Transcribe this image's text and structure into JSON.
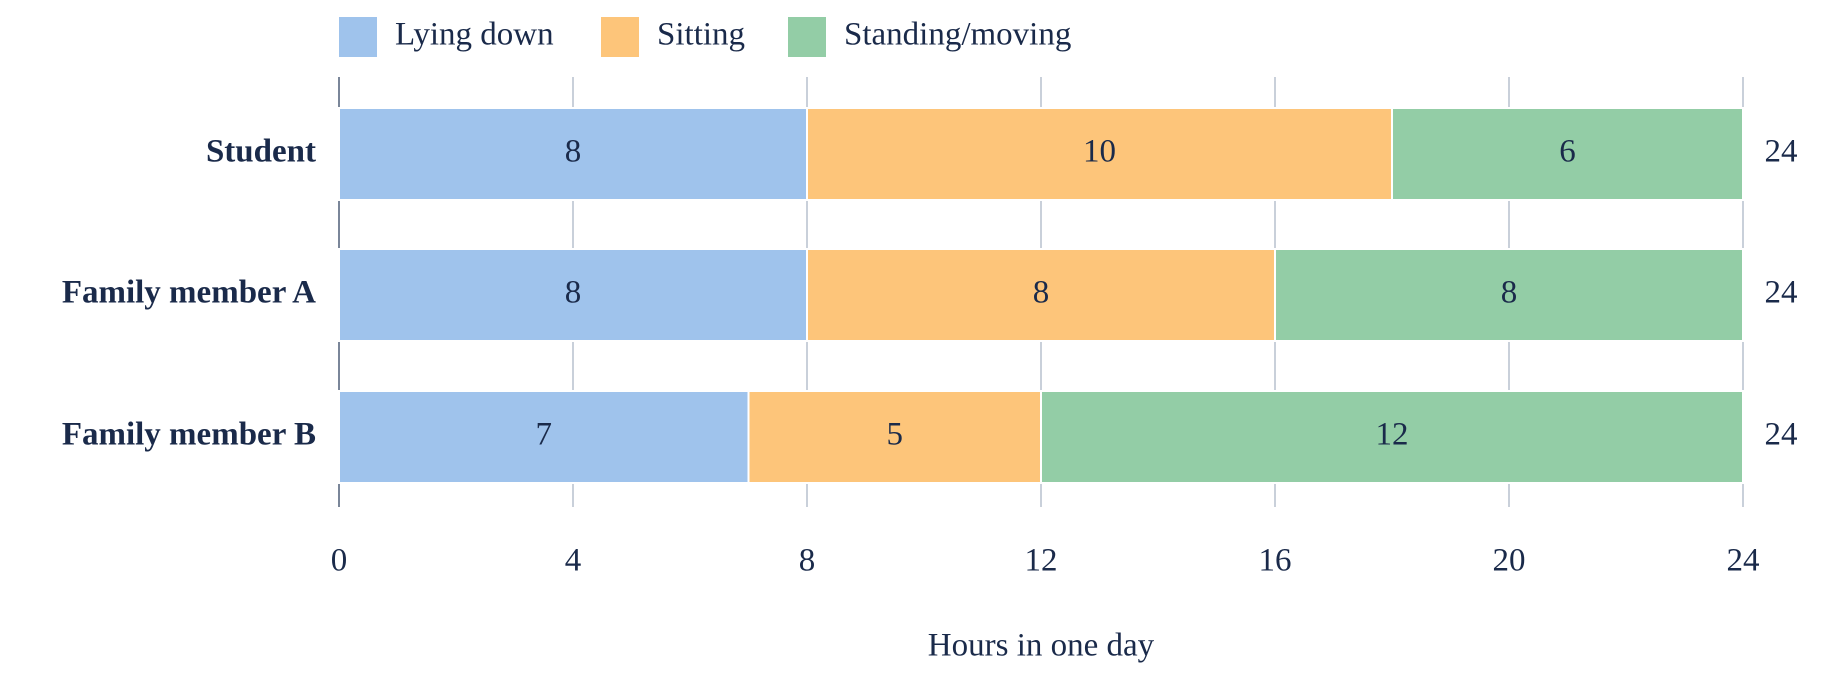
{
  "chart_data": {
    "type": "stacked-bar-horizontal",
    "categories": [
      "Student",
      "Family member A",
      "Family member B"
    ],
    "series": [
      {
        "name": "Lying down",
        "color": "#9fc3ec",
        "values": [
          8,
          8,
          7
        ]
      },
      {
        "name": "Sitting",
        "color": "#fdc57a",
        "values": [
          10,
          8,
          5
        ]
      },
      {
        "name": "Standing/moving",
        "color": "#93cda6",
        "values": [
          6,
          8,
          12
        ]
      }
    ],
    "totals": [
      24,
      24,
      24
    ],
    "xlabel": "Hours in one day",
    "xlim": [
      0,
      24
    ],
    "xticks": [
      0,
      4,
      8,
      12,
      16,
      20,
      24
    ],
    "grid": true,
    "legend": "top-left"
  }
}
